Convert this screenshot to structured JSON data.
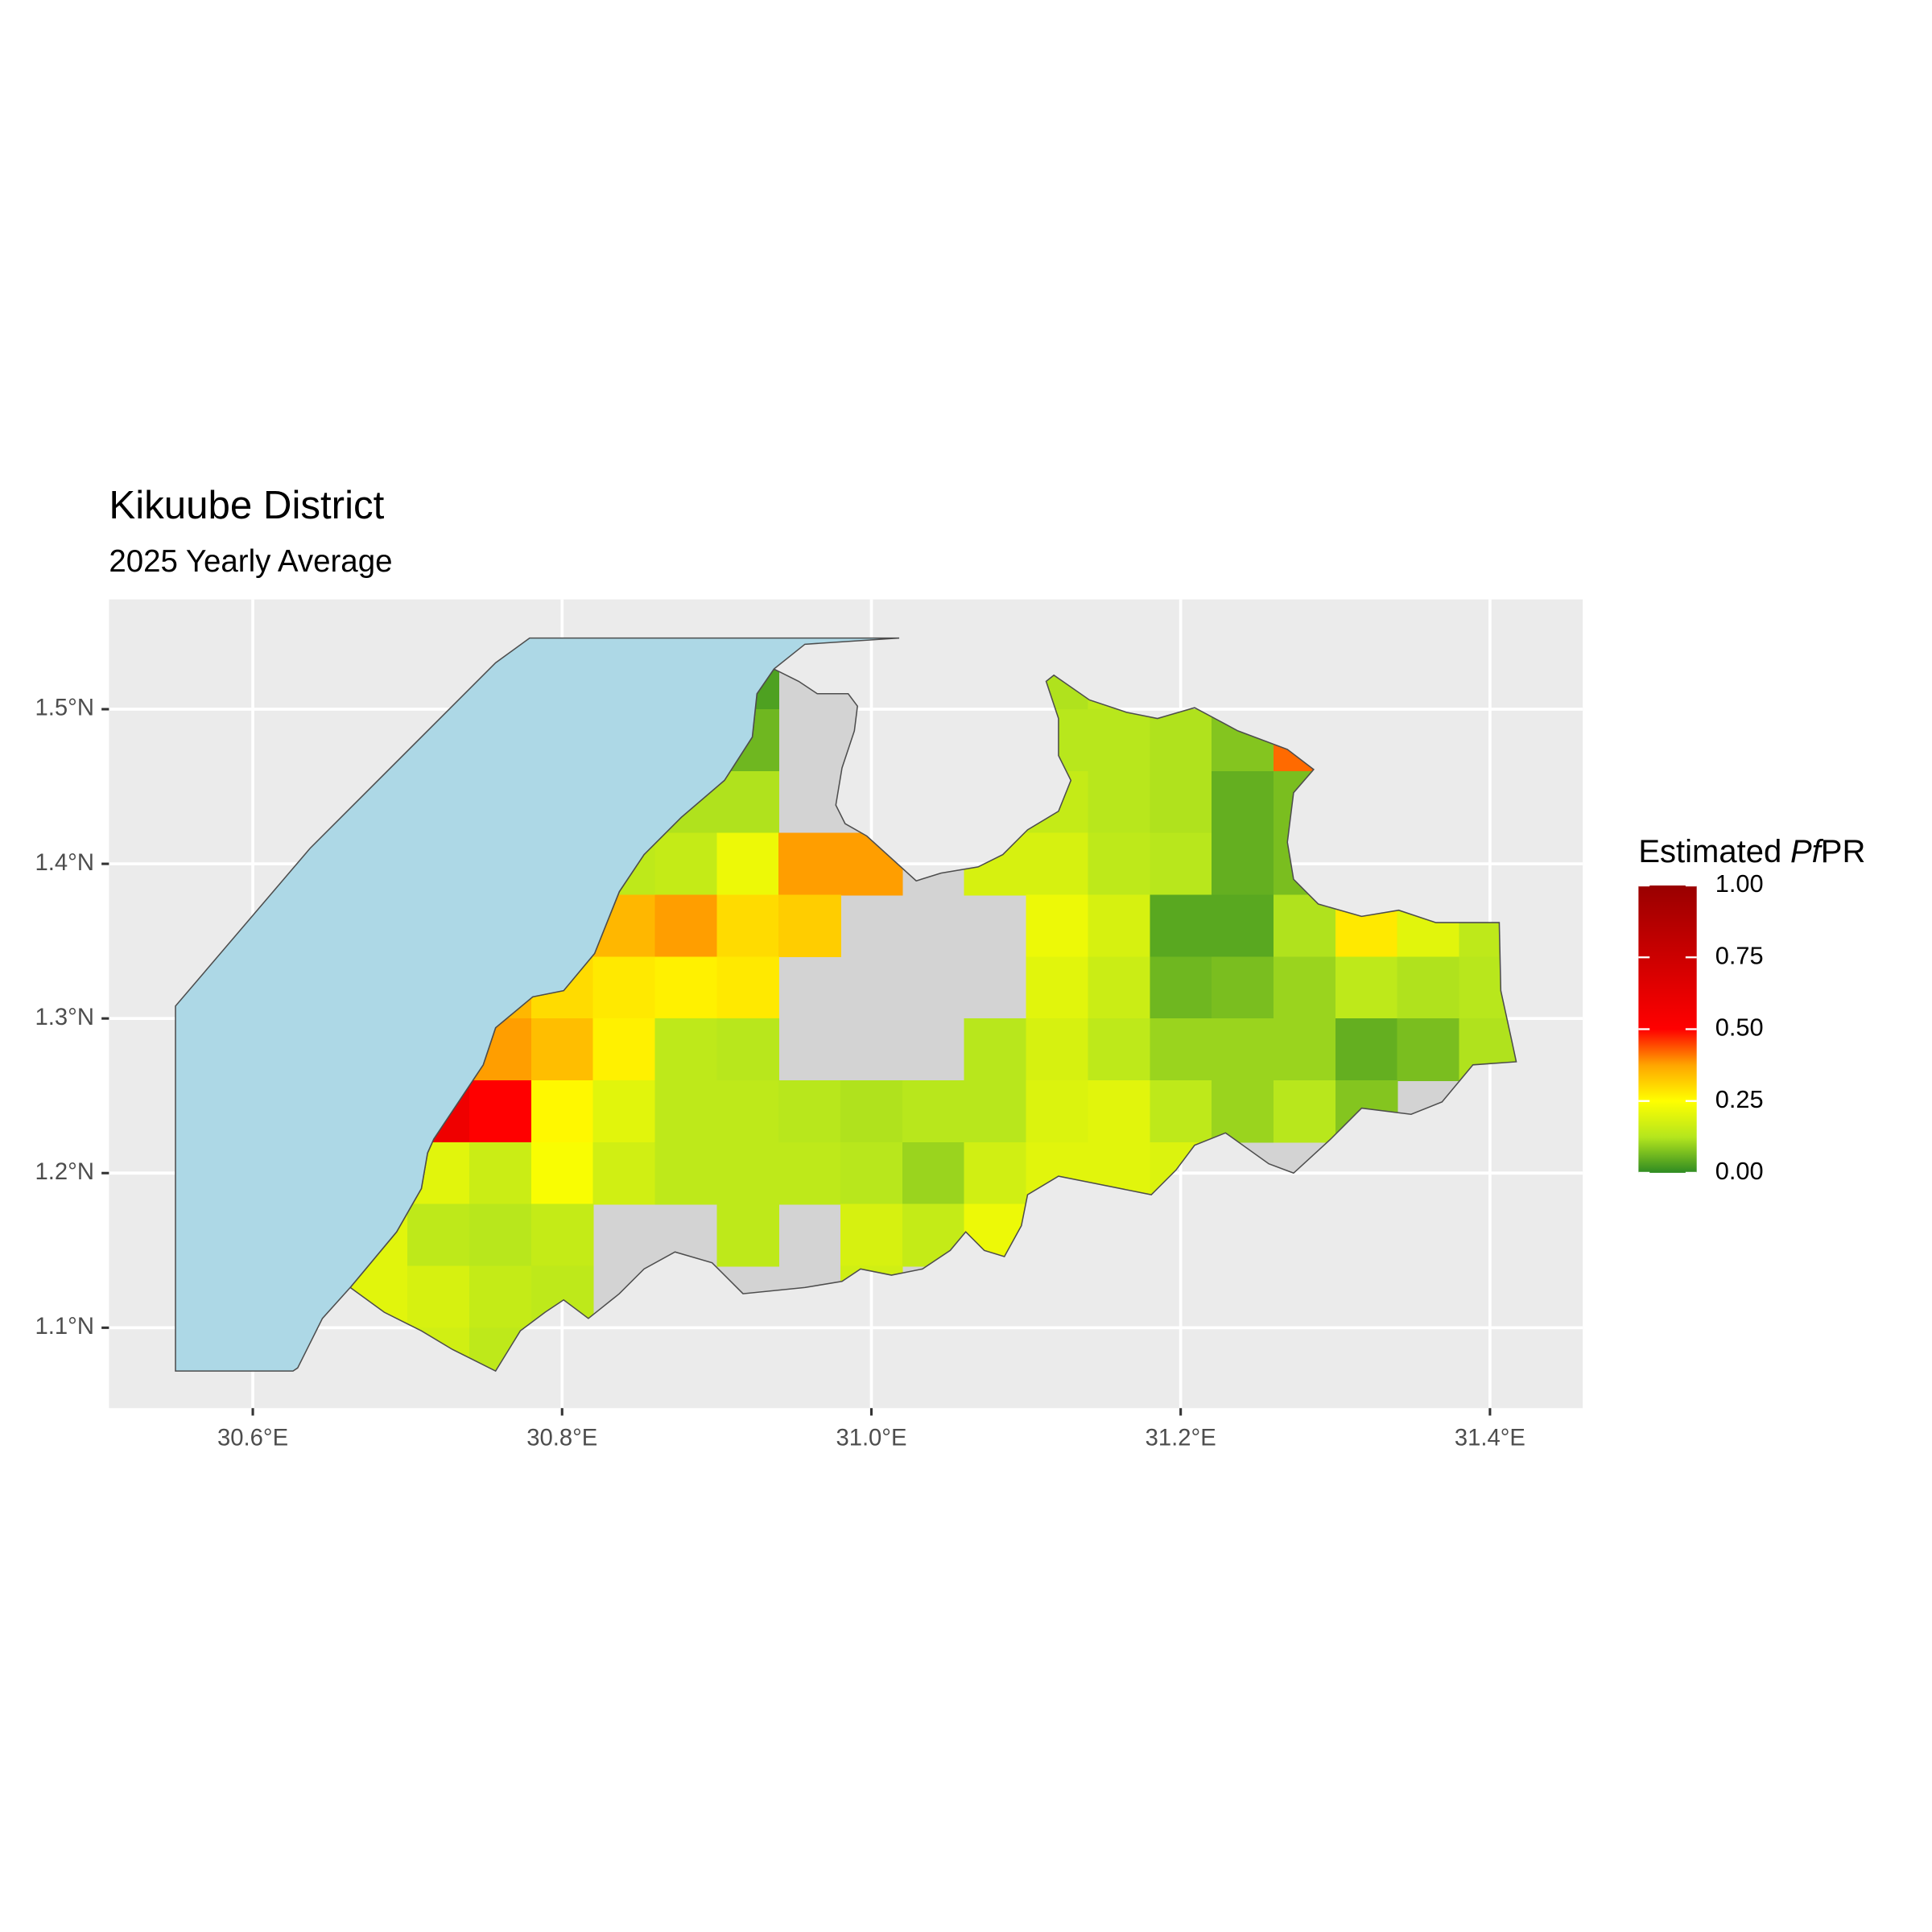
{
  "chart_data": {
    "type": "raster",
    "title": "Kikuube District",
    "subtitle": "2025 Yearly Average",
    "xlim": [
      30.507,
      31.46
    ],
    "ylim": [
      1.048,
      1.571
    ],
    "xticks": [
      {
        "value": 30.6,
        "label": "30.6°E"
      },
      {
        "value": 30.8,
        "label": "30.8°E"
      },
      {
        "value": 31.0,
        "label": "31.0°E"
      },
      {
        "value": 31.2,
        "label": "31.2°E"
      },
      {
        "value": 31.4,
        "label": "31.4°E"
      }
    ],
    "yticks": [
      {
        "value": 1.1,
        "label": "1.1°N"
      },
      {
        "value": 1.2,
        "label": "1.2°N"
      },
      {
        "value": 1.3,
        "label": "1.3°N"
      },
      {
        "value": 1.4,
        "label": "1.4°N"
      },
      {
        "value": 1.5,
        "label": "1.5°N"
      }
    ],
    "grid": true,
    "x": [
      30.68,
      30.72,
      30.76,
      30.8,
      30.84,
      30.88,
      30.92,
      30.96,
      31.0,
      31.04,
      31.08,
      31.12,
      31.16,
      31.2,
      31.24,
      31.28,
      31.32,
      31.36,
      31.4
    ],
    "y": [
      1.52,
      1.48,
      1.44,
      1.4,
      1.36,
      1.32,
      1.28,
      1.24,
      1.2,
      1.16,
      1.12,
      1.08
    ],
    "values": [
      [
        null,
        null,
        null,
        null,
        null,
        null,
        0.03,
        null,
        null,
        null,
        null,
        0.12,
        0.14,
        null,
        null,
        null,
        null,
        null,
        null
      ],
      [
        null,
        null,
        null,
        null,
        null,
        null,
        0.06,
        null,
        null,
        null,
        null,
        0.13,
        0.13,
        0.12,
        0.08,
        0.42,
        null,
        null,
        null
      ],
      [
        null,
        null,
        null,
        null,
        null,
        0.12,
        0.12,
        null,
        null,
        null,
        null,
        0.15,
        0.13,
        0.12,
        0.05,
        0.07,
        null,
        null,
        null
      ],
      [
        null,
        null,
        null,
        null,
        0.14,
        0.15,
        0.22,
        0.38,
        0.38,
        null,
        0.18,
        0.18,
        0.14,
        0.13,
        0.05,
        0.07,
        null,
        null,
        null
      ],
      [
        null,
        null,
        null,
        null,
        0.35,
        0.38,
        0.3,
        0.32,
        null,
        null,
        null,
        0.22,
        0.18,
        0.04,
        0.04,
        0.12,
        0.28,
        0.2,
        0.14
      ],
      [
        null,
        null,
        0.35,
        0.3,
        0.28,
        0.27,
        0.28,
        null,
        null,
        null,
        null,
        0.2,
        0.16,
        0.06,
        0.07,
        0.1,
        0.14,
        0.12,
        0.13
      ],
      [
        null,
        null,
        0.38,
        0.34,
        0.27,
        0.14,
        0.13,
        null,
        null,
        null,
        0.13,
        0.18,
        0.14,
        0.1,
        0.1,
        0.1,
        0.05,
        0.07,
        0.12
      ],
      [
        null,
        0.58,
        0.5,
        0.26,
        0.2,
        0.14,
        0.14,
        0.13,
        0.12,
        0.13,
        0.13,
        0.19,
        0.2,
        0.14,
        0.1,
        0.13,
        0.08,
        null,
        null
      ],
      [
        null,
        0.2,
        0.16,
        0.24,
        0.17,
        0.14,
        0.14,
        0.14,
        0.13,
        0.1,
        0.17,
        0.2,
        0.2,
        0.19,
        null,
        null,
        null,
        null,
        null
      ],
      [
        0.2,
        0.14,
        0.13,
        0.15,
        null,
        null,
        0.14,
        null,
        0.18,
        0.15,
        0.22,
        null,
        null,
        null,
        null,
        null,
        null,
        null,
        null
      ],
      [
        0.2,
        0.18,
        0.15,
        0.14,
        null,
        null,
        null,
        null,
        0.17,
        null,
        null,
        null,
        null,
        null,
        null,
        null,
        null,
        null,
        null
      ],
      [
        null,
        0.17,
        0.14,
        null,
        null,
        null,
        null,
        null,
        null,
        null,
        null,
        null,
        null,
        null,
        null,
        null,
        null,
        null,
        null
      ]
    ],
    "map": {
      "district_color": "#d3d3d3",
      "lake_color": "#add8e6",
      "coast": [
        [
          30.937,
          1.526
        ],
        [
          30.926,
          1.51
        ],
        [
          30.923,
          1.482
        ],
        [
          30.905,
          1.454
        ],
        [
          30.877,
          1.43
        ],
        [
          30.853,
          1.406
        ],
        [
          30.837,
          1.382
        ],
        [
          30.821,
          1.342
        ],
        [
          30.801,
          1.318
        ],
        [
          30.781,
          1.314
        ],
        [
          30.757,
          1.294
        ],
        [
          30.749,
          1.27
        ],
        [
          30.733,
          1.246
        ],
        [
          30.717,
          1.222
        ],
        [
          30.713,
          1.213
        ],
        [
          30.709,
          1.19
        ],
        [
          30.693,
          1.162
        ],
        [
          30.673,
          1.138
        ],
        [
          30.663,
          1.126
        ]
      ],
      "district_rest": [
        [
          30.685,
          1.11
        ],
        [
          30.709,
          1.098
        ],
        [
          30.729,
          1.086
        ],
        [
          30.745,
          1.078
        ],
        [
          30.757,
          1.072
        ],
        [
          30.773,
          1.098
        ],
        [
          30.789,
          1.11
        ],
        [
          30.801,
          1.118
        ],
        [
          30.817,
          1.106
        ],
        [
          30.837,
          1.122
        ],
        [
          30.853,
          1.138
        ],
        [
          30.873,
          1.149
        ],
        [
          30.897,
          1.142
        ],
        [
          30.917,
          1.122
        ],
        [
          30.957,
          1.126
        ],
        [
          30.981,
          1.13
        ],
        [
          30.993,
          1.138
        ],
        [
          31.013,
          1.134
        ],
        [
          31.033,
          1.138
        ],
        [
          31.051,
          1.15
        ],
        [
          31.061,
          1.162
        ],
        [
          31.073,
          1.15
        ],
        [
          31.086,
          1.146
        ],
        [
          31.097,
          1.166
        ],
        [
          31.101,
          1.186
        ],
        [
          31.121,
          1.198
        ],
        [
          31.141,
          1.194
        ],
        [
          31.181,
          1.186
        ],
        [
          31.197,
          1.202
        ],
        [
          31.209,
          1.218
        ],
        [
          31.229,
          1.226
        ],
        [
          31.257,
          1.206
        ],
        [
          31.273,
          1.2
        ],
        [
          31.297,
          1.222
        ],
        [
          31.317,
          1.242
        ],
        [
          31.349,
          1.238
        ],
        [
          31.369,
          1.246
        ],
        [
          31.389,
          1.27
        ],
        [
          31.417,
          1.272
        ],
        [
          31.414,
          1.286
        ],
        [
          31.407,
          1.318
        ],
        [
          31.406,
          1.362
        ],
        [
          31.365,
          1.362
        ],
        [
          31.341,
          1.37
        ],
        [
          31.317,
          1.366
        ],
        [
          31.289,
          1.374
        ],
        [
          31.273,
          1.39
        ],
        [
          31.269,
          1.414
        ],
        [
          31.273,
          1.446
        ],
        [
          31.286,
          1.461
        ],
        [
          31.269,
          1.474
        ],
        [
          31.237,
          1.486
        ],
        [
          31.209,
          1.501
        ],
        [
          31.185,
          1.494
        ],
        [
          31.165,
          1.498
        ],
        [
          31.141,
          1.506
        ],
        [
          31.118,
          1.522
        ],
        [
          31.113,
          1.518
        ],
        [
          31.121,
          1.494
        ],
        [
          31.121,
          1.47
        ],
        [
          31.129,
          1.454
        ],
        [
          31.121,
          1.434
        ],
        [
          31.101,
          1.422
        ],
        [
          31.085,
          1.406
        ],
        [
          31.069,
          1.398
        ],
        [
          31.045,
          1.394
        ],
        [
          31.029,
          1.389
        ],
        [
          30.997,
          1.418
        ],
        [
          30.983,
          1.426
        ],
        [
          30.977,
          1.438
        ],
        [
          30.981,
          1.462
        ],
        [
          30.989,
          1.486
        ],
        [
          30.991,
          1.502
        ],
        [
          30.985,
          1.51
        ],
        [
          30.965,
          1.51
        ],
        [
          30.953,
          1.518
        ]
      ],
      "lake_rest": [
        [
          30.645,
          1.106
        ],
        [
          30.629,
          1.074
        ],
        [
          30.626,
          1.072
        ],
        [
          30.55,
          1.072
        ],
        [
          30.55,
          1.308
        ],
        [
          30.637,
          1.41
        ],
        [
          30.757,
          1.53
        ],
        [
          30.779,
          1.546
        ],
        [
          31.018,
          1.546
        ],
        [
          30.957,
          1.542
        ]
      ]
    },
    "legend": {
      "title_parts": [
        "Estimated",
        "Pf",
        "PR"
      ],
      "limits": [
        0,
        1
      ],
      "ticks": [
        {
          "value": 0,
          "label": "0.00"
        },
        {
          "value": 0.25,
          "label": "0.25"
        },
        {
          "value": 0.5,
          "label": "0.50"
        },
        {
          "value": 0.75,
          "label": "0.75"
        },
        {
          "value": 1,
          "label": "1.00"
        }
      ],
      "palette": [
        "#2e8b22",
        "#b5e61d",
        "#ffff00",
        "#ffa500",
        "#ff0000",
        "#e60000",
        "#cc0000",
        "#b30000",
        "#990000"
      ]
    }
  }
}
